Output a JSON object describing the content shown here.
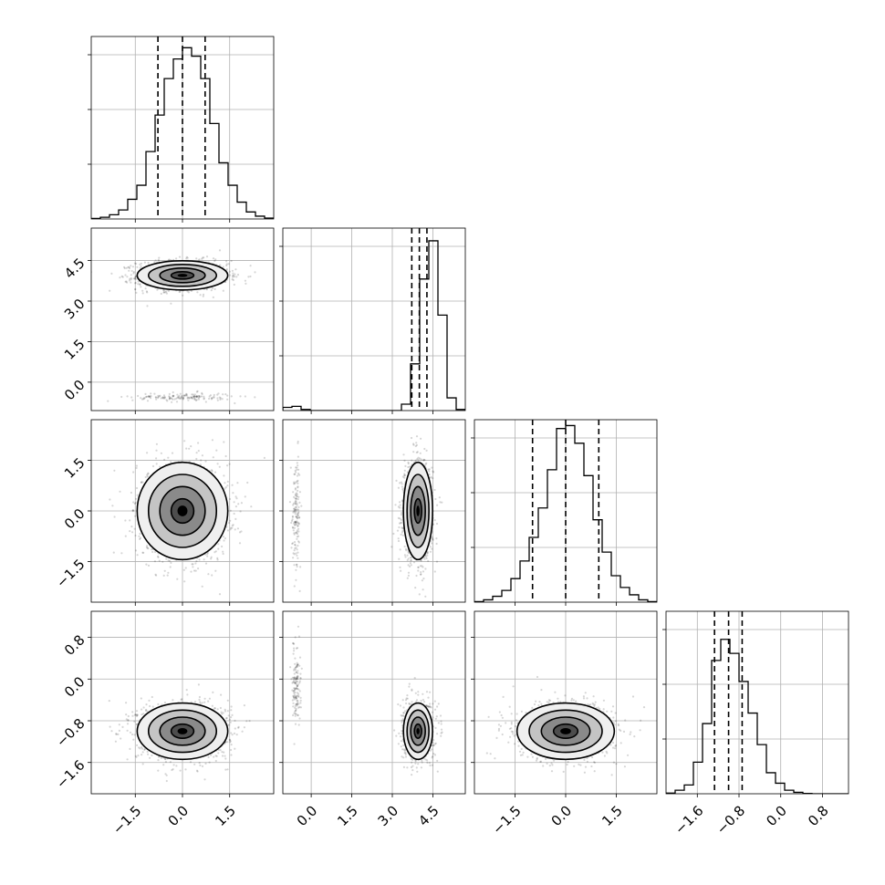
{
  "chart_data": {
    "type": "corner",
    "parameters": 4,
    "grid": true,
    "quantile_style": "dashed",
    "axes": [
      {
        "range": [
          -2.9,
          2.9
        ],
        "ticks": [
          -1.5,
          0.0,
          1.5
        ],
        "tick_labels": [
          "−1.5",
          "0.0",
          "1.5"
        ]
      },
      {
        "range": [
          -1.05,
          5.7
        ],
        "ticks": [
          0.0,
          1.5,
          3.0,
          4.5
        ],
        "tick_labels": [
          "0.0",
          "1.5",
          "3.0",
          "4.5"
        ]
      },
      {
        "range": [
          -2.7,
          2.7
        ],
        "ticks": [
          -1.5,
          0.0,
          1.5
        ],
        "tick_labels": [
          "−1.5",
          "0.0",
          "1.5"
        ]
      },
      {
        "range": [
          -2.2,
          1.3
        ],
        "ticks": [
          -1.6,
          -0.8,
          0.0,
          0.8
        ],
        "tick_labels": [
          "−1.6",
          "−0.8",
          "0.0",
          "0.8"
        ]
      }
    ],
    "histograms": [
      {
        "param": 0,
        "bin_edges": [
          -2.9,
          -2.61,
          -2.32,
          -2.03,
          -1.74,
          -1.45,
          -1.16,
          -0.87,
          -0.58,
          -0.29,
          0.0,
          0.29,
          0.58,
          0.87,
          1.16,
          1.45,
          1.74,
          2.03,
          2.32,
          2.61,
          2.9
        ],
        "counts": [
          0.2,
          0.6,
          1.5,
          3.2,
          7,
          12,
          24,
          37,
          50,
          57,
          61,
          58,
          50,
          34,
          20,
          12,
          6,
          2.5,
          1,
          0.3
        ],
        "ymax": 65,
        "quantiles": [
          -0.78,
          0.0,
          0.72
        ]
      },
      {
        "param": 1,
        "bin_edges": [
          -1.05,
          -0.7125,
          -0.375,
          -0.0375,
          0.3,
          0.6375,
          0.975,
          1.3125,
          1.65,
          1.9875,
          2.325,
          2.6625,
          3.0,
          3.3375,
          3.675,
          4.0125,
          4.35,
          4.6875,
          5.025,
          5.3625,
          5.7
        ],
        "counts": [
          1.5,
          2,
          0.5,
          0,
          0,
          0,
          0,
          0,
          0,
          0,
          0,
          0,
          0,
          3,
          22,
          62,
          80,
          45,
          6,
          0.5
        ],
        "ymax": 86,
        "quantiles": [
          3.72,
          4.0,
          4.28
        ]
      },
      {
        "param": 2,
        "bin_edges": [
          -2.7,
          -2.43,
          -2.16,
          -1.89,
          -1.62,
          -1.35,
          -1.08,
          -0.81,
          -0.54,
          -0.27,
          0.0,
          0.27,
          0.54,
          0.81,
          1.08,
          1.35,
          1.62,
          1.89,
          2.16,
          2.43,
          2.7
        ],
        "counts": [
          0.2,
          0.8,
          2,
          4,
          8,
          14,
          22,
          32,
          45,
          59,
          60,
          54,
          43,
          28,
          17,
          9,
          5,
          2.5,
          0.8,
          0.2
        ],
        "ymax": 62,
        "quantiles": [
          -0.98,
          0.0,
          0.98
        ]
      },
      {
        "param": 3,
        "bin_edges": [
          -2.2,
          -2.025,
          -1.85,
          -1.675,
          -1.5,
          -1.325,
          -1.15,
          -0.975,
          -0.8,
          -0.625,
          -0.45,
          -0.275,
          -0.1,
          0.075,
          0.25,
          0.425,
          0.6,
          0.775,
          0.95,
          1.125,
          1.3
        ],
        "counts": [
          0.2,
          1,
          2.5,
          9,
          20,
          38,
          44,
          40,
          32,
          23,
          14,
          6,
          3,
          1,
          0.4,
          0.1,
          0,
          0,
          0,
          0
        ],
        "ymax": 52,
        "quantiles": [
          -1.27,
          -1.0,
          -0.74
        ]
      }
    ],
    "pairs": [
      {
        "x": 0,
        "y": 1,
        "center": [
          0.0,
          3.95
        ],
        "sigma": [
          0.72,
          0.27
        ],
        "n_main": 1400,
        "secondary": {
          "center": [
            0.0,
            -0.55
          ],
          "sigma": [
            0.8,
            0.08
          ],
          "n": 150
        }
      },
      {
        "x": 0,
        "y": 2,
        "center": [
          0.0,
          0.0
        ],
        "sigma": [
          0.72,
          0.72
        ],
        "n_main": 1400,
        "secondary": null
      },
      {
        "x": 1,
        "y": 2,
        "center": [
          3.95,
          0.0
        ],
        "sigma": [
          0.27,
          0.72
        ],
        "n_main": 1300,
        "secondary": {
          "center": [
            -0.55,
            0.0
          ],
          "sigma": [
            0.08,
            0.8
          ],
          "n": 150
        }
      },
      {
        "x": 0,
        "y": 3,
        "center": [
          0.0,
          -1.0
        ],
        "sigma": [
          0.72,
          0.27
        ],
        "n_main": 1400,
        "secondary": null
      },
      {
        "x": 1,
        "y": 3,
        "center": [
          3.95,
          -1.0
        ],
        "sigma": [
          0.27,
          0.27
        ],
        "n_main": 1200,
        "secondary": {
          "center": [
            -0.55,
            -0.1
          ],
          "sigma": [
            0.08,
            0.35
          ],
          "n": 140
        }
      },
      {
        "x": 2,
        "y": 3,
        "center": [
          0.0,
          -1.0
        ],
        "sigma": [
          0.72,
          0.27
        ],
        "n_main": 1400,
        "secondary": null
      }
    ],
    "contour_levels_sigma": [
      0.5,
      1.0,
      1.5,
      2.0
    ],
    "density_levels": [
      {
        "sigma": 0.0,
        "shade": "#000000"
      },
      {
        "sigma": 0.5,
        "shade": "#4d4d4d"
      },
      {
        "sigma": 1.0,
        "shade": "#8a8a8a"
      },
      {
        "sigma": 1.5,
        "shade": "#c4c4c4"
      },
      {
        "sigma": 2.0,
        "shade": "#efefef"
      }
    ]
  }
}
